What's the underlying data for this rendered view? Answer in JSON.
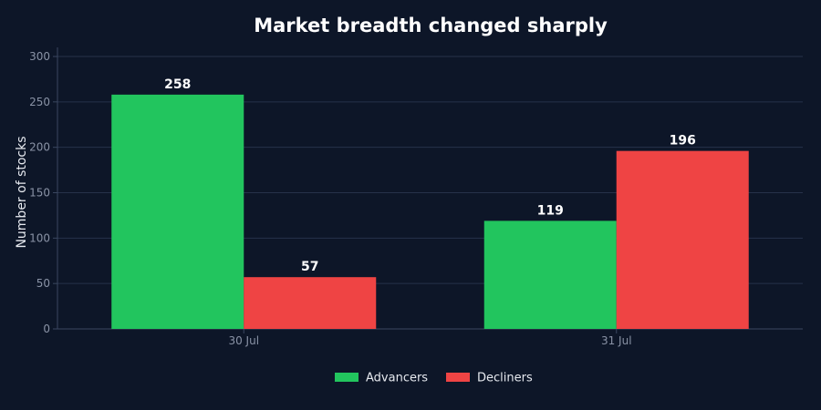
{
  "colors": {
    "background": "#0d1628",
    "grid": "#26324a",
    "axis": "#3a4660",
    "advancers": "#22c55e",
    "decliners": "#ef4444"
  },
  "chart_data": {
    "type": "bar",
    "title": "Market breadth changed sharply",
    "xlabel": "",
    "ylabel": "Number of stocks",
    "categories": [
      "30 Jul",
      "31 Jul"
    ],
    "series": [
      {
        "name": "Advancers",
        "values": [
          258,
          119
        ],
        "color": "#22c55e"
      },
      {
        "name": "Decliners",
        "values": [
          57,
          196
        ],
        "color": "#ef4444"
      }
    ],
    "ylim": [
      0,
      300
    ],
    "yticks": [
      0,
      50,
      100,
      150,
      200,
      250,
      300
    ],
    "grid": true,
    "legend_position": "bottom-center",
    "data_labels": true
  }
}
